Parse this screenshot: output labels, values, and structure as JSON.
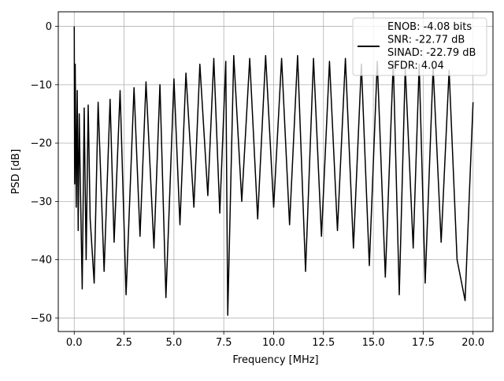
{
  "chart_data": {
    "type": "line",
    "title": "",
    "xlabel": "Frequency [MHz]",
    "ylabel": "PSD [dB]",
    "xlim": [
      -0.8,
      21.0
    ],
    "ylim": [
      -52.3,
      2.5
    ],
    "x_ticks": [
      0.0,
      2.5,
      5.0,
      7.5,
      10.0,
      12.5,
      15.0,
      17.5,
      20.0
    ],
    "x_tick_labels": [
      "0.0",
      "2.5",
      "5.0",
      "7.5",
      "10.0",
      "12.5",
      "15.0",
      "17.5",
      "20.0"
    ],
    "y_ticks": [
      0,
      -10,
      -20,
      -30,
      -40,
      -50
    ],
    "y_tick_labels": [
      "0",
      "−10",
      "−20",
      "−30",
      "−40",
      "−50"
    ],
    "grid": true,
    "legend_position": "top-right",
    "legend_entries": [
      "ENOB: -4.08 bits",
      "SNR: -22.77 dB",
      "SINAD: -22.79 dB",
      "SFDR: 4.04"
    ],
    "series": [
      {
        "color": "#000000",
        "x": [
          0.0,
          0.02,
          0.05,
          0.1,
          0.15,
          0.2,
          0.25,
          0.3,
          0.4,
          0.5,
          0.6,
          0.7,
          0.8,
          1.0,
          1.2,
          1.5,
          1.8,
          2.0,
          2.3,
          2.6,
          3.0,
          3.3,
          3.6,
          4.0,
          4.3,
          4.6,
          5.0,
          5.3,
          5.6,
          6.0,
          6.3,
          6.7,
          7.0,
          7.3,
          7.6,
          7.7,
          8.0,
          8.4,
          8.8,
          9.2,
          9.6,
          10.0,
          10.4,
          10.8,
          11.2,
          11.6,
          12.0,
          12.4,
          12.8,
          13.2,
          13.6,
          14.0,
          14.4,
          14.8,
          15.2,
          15.6,
          16.0,
          16.3,
          16.6,
          17.0,
          17.3,
          17.6,
          18.0,
          18.4,
          18.8,
          19.2,
          19.6,
          20.0
        ],
        "y": [
          0.0,
          -27.0,
          -6.5,
          -31.0,
          -11.0,
          -35.0,
          -15.0,
          -26.0,
          -45.0,
          -14.0,
          -40.0,
          -13.5,
          -33.0,
          -44.0,
          -13.0,
          -42.0,
          -12.5,
          -37.0,
          -11.0,
          -46.0,
          -10.5,
          -36.0,
          -9.5,
          -38.0,
          -10.0,
          -46.5,
          -9.0,
          -34.0,
          -8.0,
          -31.0,
          -6.5,
          -29.0,
          -5.5,
          -32.0,
          -6.0,
          -49.5,
          -5.0,
          -30.0,
          -5.5,
          -33.0,
          -5.0,
          -31.0,
          -5.5,
          -34.0,
          -5.0,
          -42.0,
          -5.5,
          -36.0,
          -6.0,
          -35.0,
          -5.5,
          -38.0,
          -6.5,
          -41.0,
          -6.0,
          -43.0,
          -6.0,
          -46.0,
          -7.0,
          -38.0,
          -6.5,
          -44.0,
          -7.0,
          -37.0,
          -7.5,
          -40.0,
          -47.0,
          -13.0
        ]
      }
    ]
  }
}
